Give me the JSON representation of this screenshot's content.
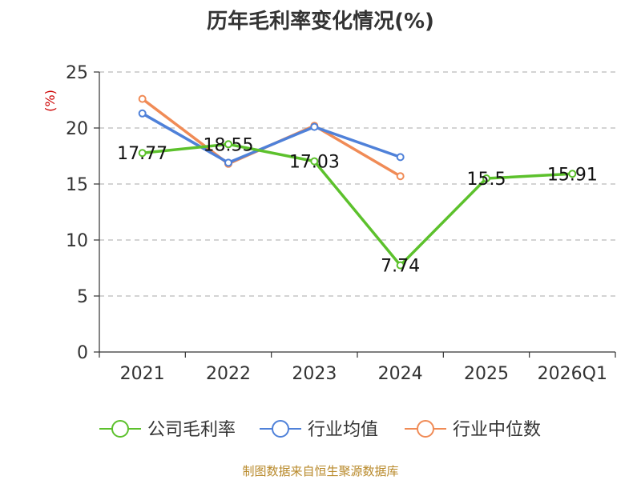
{
  "title": "历年毛利率变化情况(%)",
  "source": "制图数据来自恒生聚源数据库",
  "chart_data": {
    "type": "line",
    "categories": [
      "2021",
      "2022",
      "2023",
      "2024",
      "2025",
      "2026Q1"
    ],
    "ylabel": "(%)",
    "ylim": [
      0,
      25
    ],
    "yticks": [
      0,
      5,
      10,
      15,
      20,
      25
    ],
    "grid": true,
    "legend_position": "bottom",
    "series": [
      {
        "name": "公司毛利率",
        "color": "#5cc12c",
        "values": [
          17.77,
          18.55,
          17.03,
          7.74,
          15.5,
          15.91
        ],
        "labels": [
          "17.77",
          "18.55",
          "17.03",
          "7.74",
          "15.5",
          "15.91"
        ]
      },
      {
        "name": "行业均值",
        "color": "#4f81d9",
        "values": [
          21.3,
          16.9,
          20.1,
          17.4,
          null,
          null
        ]
      },
      {
        "name": "行业中位数",
        "color": "#f08b56",
        "values": [
          22.6,
          16.8,
          20.2,
          15.7,
          null,
          null
        ]
      }
    ]
  }
}
